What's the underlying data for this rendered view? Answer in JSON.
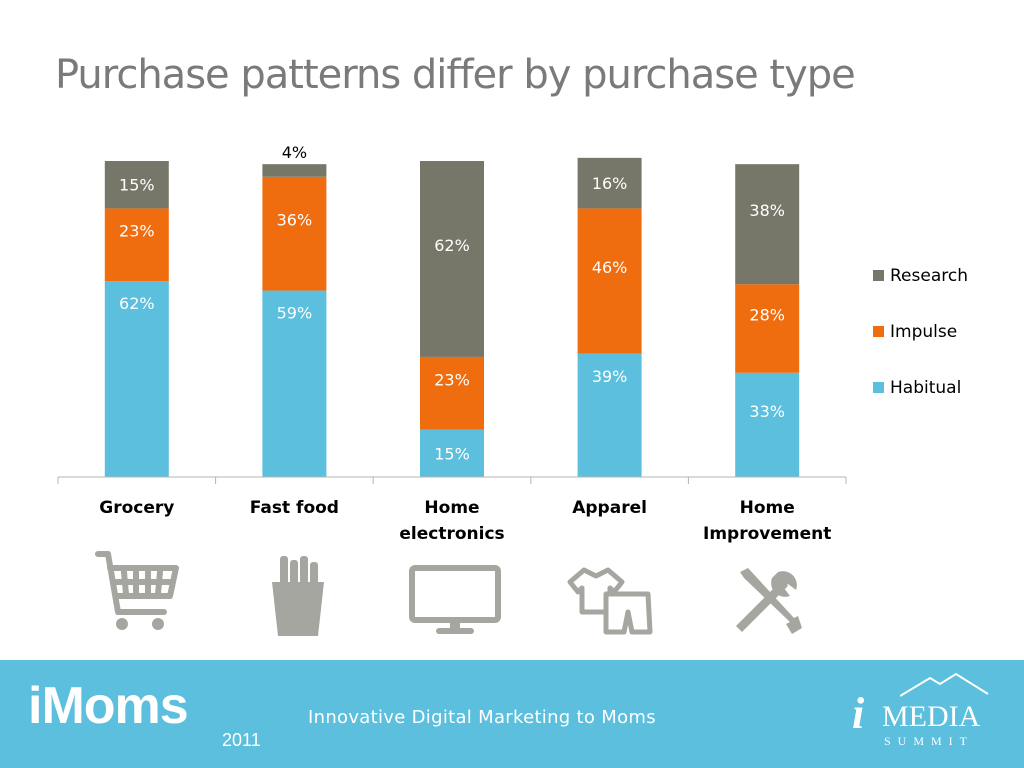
{
  "title": "Purchase patterns differ by purchase type",
  "chart_data": {
    "type": "bar",
    "stacked": true,
    "percent": true,
    "categories": [
      [
        "Grocery"
      ],
      [
        "Fast food"
      ],
      [
        "Home",
        "electronics"
      ],
      [
        "Apparel"
      ],
      [
        "Home",
        "Improvement"
      ]
    ],
    "series": [
      {
        "name": "Habitual",
        "color": "#5bbfdd",
        "values": [
          62,
          59,
          15,
          39,
          33
        ]
      },
      {
        "name": "Impulse",
        "color": "#ef6c0f",
        "values": [
          23,
          36,
          23,
          46,
          28
        ]
      },
      {
        "name": "Research",
        "color": "#777769",
        "values": [
          15,
          4,
          62,
          16,
          38
        ]
      }
    ],
    "labels": [
      [
        "62%",
        "59%",
        "15%",
        "39%",
        "33%"
      ],
      [
        "23%",
        "36%",
        "23%",
        "46%",
        "28%"
      ],
      [
        "15%",
        "4%",
        "62%",
        "16%",
        "38%"
      ]
    ],
    "legend_order": [
      "Research",
      "Impulse",
      "Habitual"
    ],
    "legend_position": "right",
    "ylim": [
      0,
      100
    ],
    "grid": false
  },
  "category_icons": [
    "shopping-cart-icon",
    "fries-icon",
    "monitor-icon",
    "clothing-icon",
    "tools-icon"
  ],
  "footer": {
    "logo": "iMoms",
    "year": "2011",
    "tagline": "Innovative Digital Marketing to Moms",
    "brand": "iMEDIA",
    "brand_sub": "SUMMIT"
  }
}
